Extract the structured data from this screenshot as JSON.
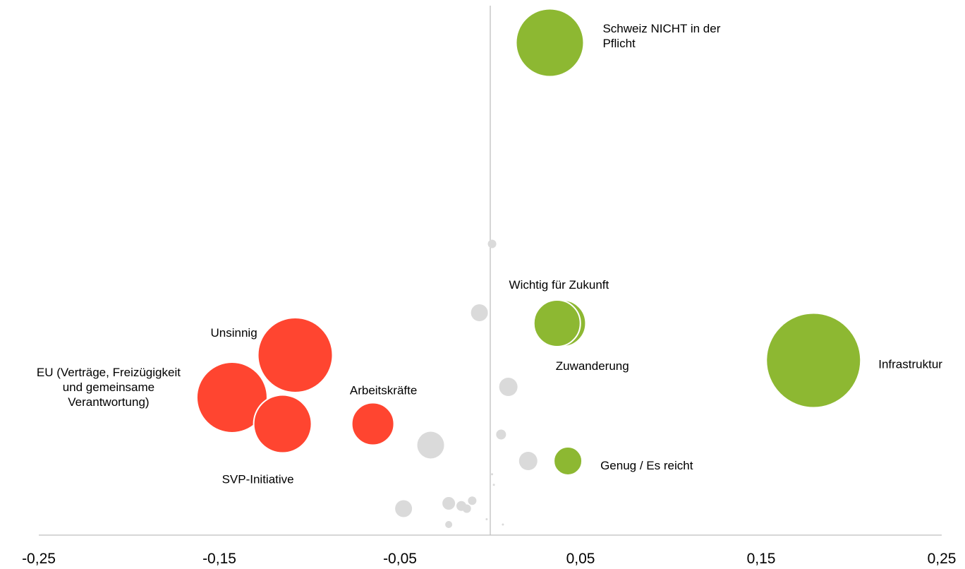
{
  "chart_data": {
    "type": "scatter",
    "title": "",
    "xlabel": "",
    "ylabel": "",
    "xlim": [
      -0.25,
      0.25
    ],
    "xticks": [
      "-0,25",
      "-0,15",
      "-0,05",
      "0,05",
      "0,15",
      "0,25"
    ],
    "xtick_values": [
      -0.25,
      -0.15,
      -0.05,
      0.05,
      0.15,
      0.25
    ],
    "y_axis_at_x": 0.0,
    "grid": false,
    "legend": "none",
    "colors": {
      "positive": "#8db832",
      "negative": "#ff4530",
      "neutral": "#dadada",
      "axis": "#bfbfbf"
    },
    "points": [
      {
        "name": "Schweiz NICHT in der Pflicht",
        "label_lines": [
          "Schweiz NICHT in der",
          "Pflicht"
        ],
        "x": 0.033,
        "y": 0.93,
        "size": 48,
        "category": "positive"
      },
      {
        "name": "Wichtig für Zukunft",
        "label_lines": [
          "Wichtig für Zukunft"
        ],
        "x": 0.04,
        "y": 0.4,
        "size": 33,
        "category": "positive"
      },
      {
        "name": "Zuwanderung",
        "label_lines": [
          "Zuwanderung"
        ],
        "x": 0.037,
        "y": 0.4,
        "size": 33,
        "category": "positive"
      },
      {
        "name": "Infrastruktur",
        "label_lines": [
          "Infrastruktur"
        ],
        "x": 0.179,
        "y": 0.33,
        "size": 67,
        "category": "positive"
      },
      {
        "name": "Genug / Es reicht",
        "label_lines": [
          "Genug / Es reicht"
        ],
        "x": 0.043,
        "y": 0.14,
        "size": 20,
        "category": "positive"
      },
      {
        "name": "Unsinnig",
        "label_lines": [
          "Unsinnig"
        ],
        "x": -0.108,
        "y": 0.34,
        "size": 53,
        "category": "negative"
      },
      {
        "name": "EU (Verträge, Freizügigkeit und gemeinsame Verantwortung)",
        "label_lines": [
          "EU (Verträge, Freizügigkeit",
          "und gemeinsame",
          "Verantwortung)"
        ],
        "x": -0.143,
        "y": 0.26,
        "size": 50,
        "category": "negative"
      },
      {
        "name": "SVP-Initiative",
        "label_lines": [
          "SVP-Initiative"
        ],
        "x": -0.115,
        "y": 0.21,
        "size": 41,
        "category": "negative"
      },
      {
        "name": "Arbeitskräfte",
        "label_lines": [
          "Arbeitskräfte"
        ],
        "x": -0.065,
        "y": 0.21,
        "size": 30,
        "category": "negative"
      },
      {
        "name": "",
        "x": 0.001,
        "y": 0.55,
        "size": 6,
        "category": "neutral"
      },
      {
        "name": "",
        "x": -0.006,
        "y": 0.42,
        "size": 12,
        "category": "neutral"
      },
      {
        "name": "",
        "x": 0.01,
        "y": 0.28,
        "size": 13,
        "category": "neutral"
      },
      {
        "name": "",
        "x": 0.006,
        "y": 0.19,
        "size": 7,
        "category": "neutral"
      },
      {
        "name": "",
        "x": -0.033,
        "y": 0.17,
        "size": 19,
        "category": "neutral"
      },
      {
        "name": "",
        "x": 0.021,
        "y": 0.14,
        "size": 13,
        "category": "neutral"
      },
      {
        "name": "",
        "x": -0.048,
        "y": 0.05,
        "size": 12,
        "category": "neutral"
      },
      {
        "name": "",
        "x": -0.023,
        "y": 0.06,
        "size": 9,
        "category": "neutral"
      },
      {
        "name": "",
        "x": -0.016,
        "y": 0.055,
        "size": 7,
        "category": "neutral"
      },
      {
        "name": "",
        "x": -0.013,
        "y": 0.05,
        "size": 6,
        "category": "neutral"
      },
      {
        "name": "",
        "x": -0.01,
        "y": 0.065,
        "size": 6,
        "category": "neutral"
      },
      {
        "name": "",
        "x": -0.023,
        "y": 0.02,
        "size": 5,
        "category": "neutral"
      },
      {
        "name": "",
        "x": 0.001,
        "y": 0.115,
        "size": 1.5,
        "category": "neutral"
      },
      {
        "name": "",
        "x": 0.002,
        "y": 0.095,
        "size": 1.5,
        "category": "neutral"
      },
      {
        "name": "",
        "x": -0.002,
        "y": 0.03,
        "size": 1.5,
        "category": "neutral"
      },
      {
        "name": "",
        "x": 0.007,
        "y": 0.02,
        "size": 1.5,
        "category": "neutral"
      }
    ]
  }
}
